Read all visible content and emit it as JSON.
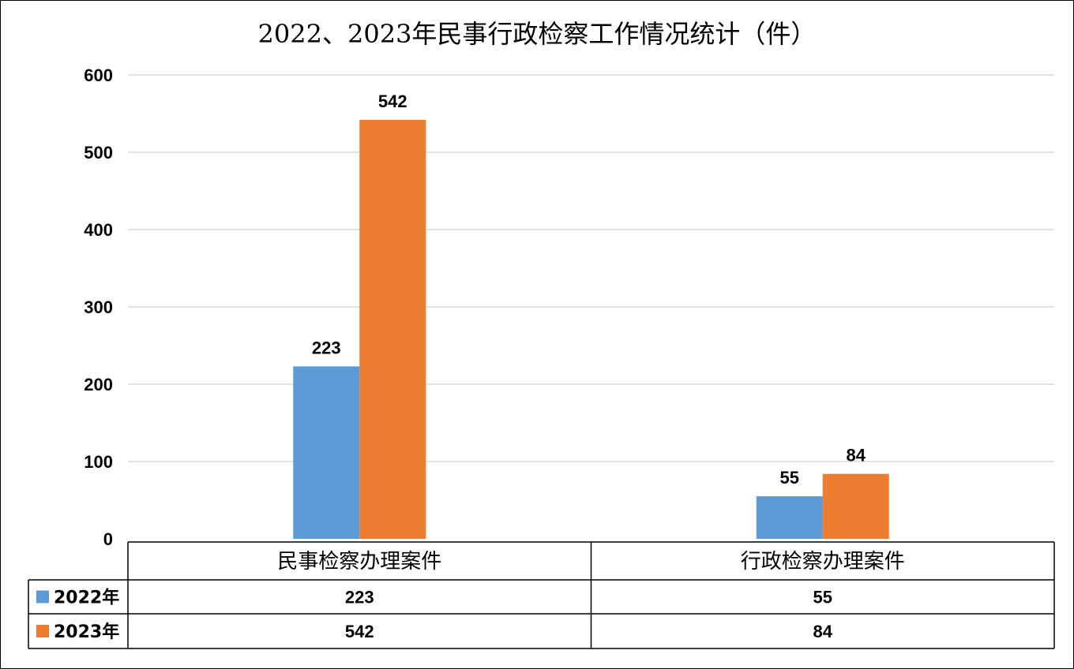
{
  "chart_data": {
    "type": "bar",
    "title": "2022、2023年民事行政检察工作情况统计（件）",
    "categories": [
      "民事检察办理案件",
      "行政检察办理案件"
    ],
    "series": [
      {
        "name": "2022年",
        "values": [
          223,
          55
        ],
        "color": "#5B9BD5"
      },
      {
        "name": "2023年",
        "values": [
          542,
          84
        ],
        "color": "#ED7D31"
      }
    ],
    "ylim": [
      0,
      600
    ],
    "yticks": [
      0,
      100,
      200,
      300,
      400,
      500,
      600
    ],
    "grid": true,
    "legend": "data-table-left"
  }
}
